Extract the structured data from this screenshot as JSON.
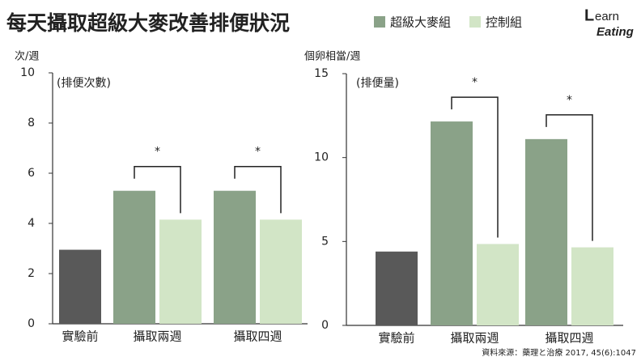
{
  "title": "每天攝取超級大麥改善排便狀況",
  "logo": {
    "first": "L",
    "rest": "earn",
    "second": "Eating"
  },
  "source": "資料來源：藥理と治療 2017, 45(6):1047",
  "chart_data": [
    {
      "type": "bar",
      "y_label": "次/週",
      "inner_label": "(排便次數)",
      "categories": [
        "實驗前",
        "攝取兩週",
        "攝取四週"
      ],
      "baseline_color": "#595959",
      "baseline_values": [
        2.95,
        null,
        null
      ],
      "series": [
        {
          "name": "超級大麥組",
          "color": "#8aa288",
          "values": [
            null,
            5.3,
            5.3
          ]
        },
        {
          "name": "控制組",
          "color": "#d2e5c6",
          "values": [
            null,
            4.15,
            4.15
          ]
        }
      ],
      "ylim": [
        0,
        10
      ],
      "yticks": [
        0,
        2,
        4,
        6,
        8,
        10
      ],
      "annotations": [
        {
          "category": 1,
          "text": "*"
        },
        {
          "category": 2,
          "text": "*"
        }
      ]
    },
    {
      "type": "bar",
      "y_label": "個卵相當/週",
      "inner_label": "(排便量)",
      "categories": [
        "實驗前",
        "攝取兩週",
        "攝取四週"
      ],
      "baseline_color": "#595959",
      "baseline_values": [
        4.4,
        null,
        null
      ],
      "series": [
        {
          "color": "#8aa288",
          "values": [
            null,
            12.15,
            11.1
          ]
        },
        {
          "color": "#d2e5c6",
          "values": [
            null,
            4.85,
            4.65
          ]
        }
      ],
      "ylim": [
        0,
        15
      ],
      "yticks": [
        0,
        5,
        10,
        15
      ],
      "annotations": [
        {
          "category": 1,
          "text": "*"
        },
        {
          "category": 2,
          "text": "*"
        }
      ]
    }
  ]
}
